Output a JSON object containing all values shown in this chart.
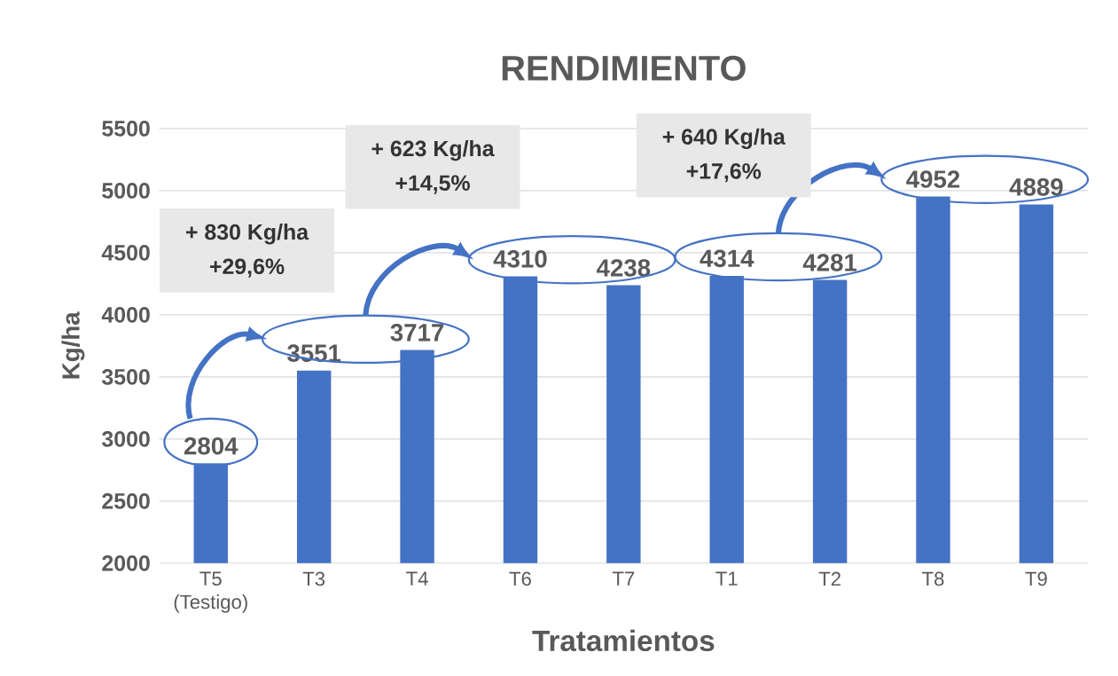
{
  "chart_data": {
    "type": "bar",
    "title": "RENDIMIENTO",
    "xlabel": "Tratamientos",
    "ylabel": "Kg/ha",
    "categories": [
      "T5 (Testigo)",
      "T3",
      "T4",
      "T6",
      "T7",
      "T1",
      "T2",
      "T8",
      "T9"
    ],
    "values": [
      2804,
      3551,
      3717,
      4310,
      4238,
      4314,
      4281,
      4952,
      4889
    ],
    "color": "#4472c4",
    "data_labels": true,
    "grid": "y",
    "ylim": [
      2000,
      5500
    ],
    "yticks": [
      2000,
      2500,
      3000,
      3500,
      4000,
      4500,
      5000,
      5500
    ],
    "annotations": [
      "+ 830 Kg/ha",
      "+29,6%",
      "+ 623 Kg/ha",
      "+14,5%",
      "+ 640 Kg/ha",
      "+17,6%"
    ]
  }
}
